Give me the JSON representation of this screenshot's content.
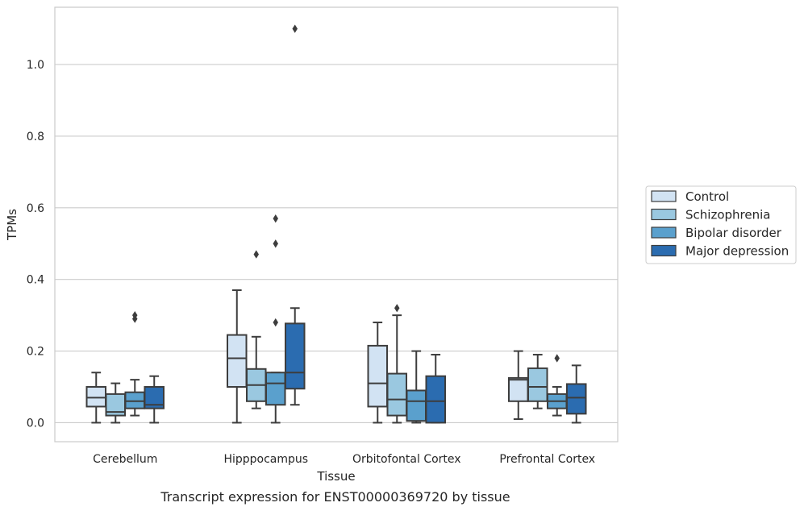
{
  "chart_data": {
    "type": "box",
    "xlabel": "Tissue",
    "ylabel": "TPMs",
    "caption": "Transcript expression for ENST00000369720 by tissue",
    "ylim": [
      -0.053,
      1.16
    ],
    "yticks": [
      0.0,
      0.2,
      0.4,
      0.6,
      0.8,
      1.0
    ],
    "ytick_labels": [
      "0.0",
      "0.2",
      "0.4",
      "0.6",
      "0.8",
      "1.0"
    ],
    "grid": "horizontal",
    "legend_position": "right",
    "categories": [
      "Cerebellum",
      "Hipppocampus",
      "Orbitofontal Cortex",
      "Prefrontal Cortex"
    ],
    "series": [
      {
        "name": "Control",
        "color": "#d2e3f3",
        "boxes": [
          {
            "min": 0.0,
            "q1": 0.045,
            "median": 0.07,
            "q3": 0.1,
            "max": 0.14,
            "outliers": []
          },
          {
            "min": 0.0,
            "q1": 0.1,
            "median": 0.18,
            "q3": 0.245,
            "max": 0.37,
            "outliers": []
          },
          {
            "min": 0.0,
            "q1": 0.045,
            "median": 0.11,
            "q3": 0.215,
            "max": 0.28,
            "outliers": []
          },
          {
            "min": 0.01,
            "q1": 0.06,
            "median": 0.12,
            "q3": 0.125,
            "max": 0.2,
            "outliers": []
          }
        ]
      },
      {
        "name": "Schizophrenia",
        "color": "#9ac8e0",
        "boxes": [
          {
            "min": 0.0,
            "q1": 0.02,
            "median": 0.03,
            "q3": 0.08,
            "max": 0.11,
            "outliers": []
          },
          {
            "min": 0.04,
            "q1": 0.06,
            "median": 0.105,
            "q3": 0.15,
            "max": 0.24,
            "outliers": [
              0.47
            ]
          },
          {
            "min": 0.0,
            "q1": 0.02,
            "median": 0.065,
            "q3": 0.137,
            "max": 0.3,
            "outliers": [
              0.32
            ]
          },
          {
            "min": 0.04,
            "q1": 0.06,
            "median": 0.1,
            "q3": 0.152,
            "max": 0.19,
            "outliers": []
          }
        ]
      },
      {
        "name": "Bipolar disorder",
        "color": "#5aa0cd",
        "boxes": [
          {
            "min": 0.02,
            "q1": 0.04,
            "median": 0.06,
            "q3": 0.085,
            "max": 0.12,
            "outliers": [
              0.29,
              0.3
            ]
          },
          {
            "min": 0.0,
            "q1": 0.05,
            "median": 0.11,
            "q3": 0.14,
            "max": 0.14,
            "outliers": [
              0.28,
              0.5,
              0.57
            ]
          },
          {
            "min": 0.0,
            "q1": 0.005,
            "median": 0.06,
            "q3": 0.09,
            "max": 0.2,
            "outliers": []
          },
          {
            "min": 0.02,
            "q1": 0.04,
            "median": 0.06,
            "q3": 0.08,
            "max": 0.1,
            "outliers": [
              0.18
            ]
          }
        ]
      },
      {
        "name": "Major depression",
        "color": "#2b6cb0",
        "boxes": [
          {
            "min": 0.0,
            "q1": 0.04,
            "median": 0.05,
            "q3": 0.1,
            "max": 0.13,
            "outliers": []
          },
          {
            "min": 0.05,
            "q1": 0.095,
            "median": 0.14,
            "q3": 0.277,
            "max": 0.32,
            "outliers": [
              1.1
            ]
          },
          {
            "min": 0.0,
            "q1": 0.0,
            "median": 0.06,
            "q3": 0.13,
            "max": 0.19,
            "outliers": []
          },
          {
            "min": 0.0,
            "q1": 0.025,
            "median": 0.07,
            "q3": 0.108,
            "max": 0.16,
            "outliers": []
          }
        ]
      }
    ]
  }
}
